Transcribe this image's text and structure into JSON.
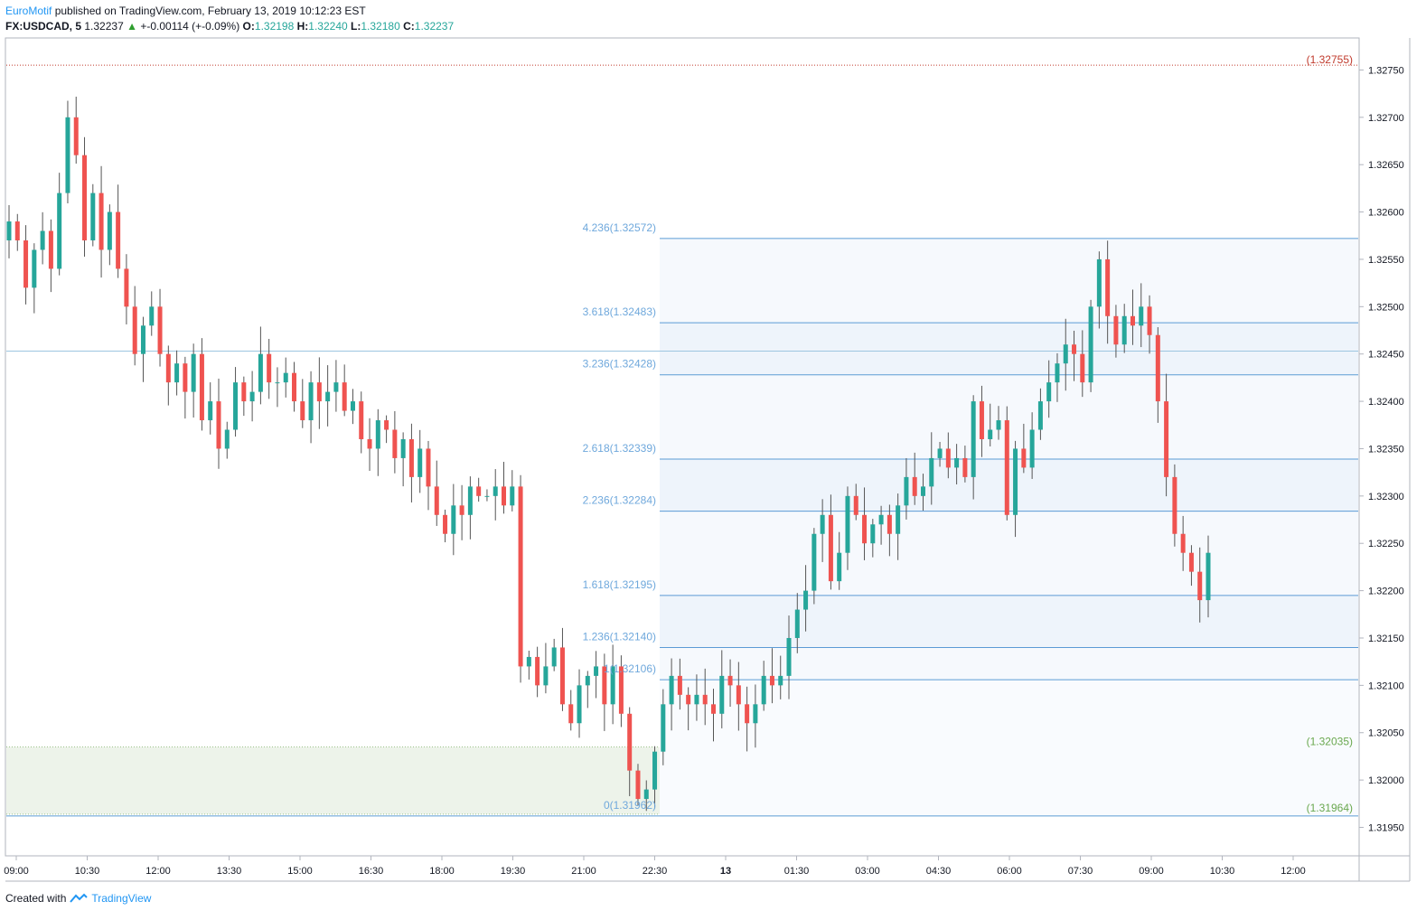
{
  "header": {
    "author": "EuroMotif",
    "published_text": "published on TradingView.com, February 13, 2019 10:12:23 EST",
    "symbol": "FX:USDCAD",
    "interval": "5",
    "last": "1.32237",
    "change": "+-0.00114 (+-0.09%)",
    "o_label": "O:",
    "o_value": "1.32198",
    "h_label": "H:",
    "h_value": "1.32240",
    "l_label": "L:",
    "l_value": "1.32180",
    "c_label": "C:",
    "c_value": "1.32237"
  },
  "footer": {
    "created_with": "Created with",
    "brand": "TradingView"
  },
  "colors": {
    "up": "#26a69a",
    "down": "#ef5350",
    "fib": "#5b9bd5",
    "fib_text": "#6fa8dc",
    "zone_fill": "#edf3ea",
    "zone_text": "#6aa84f",
    "top_level": "#c0392b"
  },
  "chart_data": {
    "type": "candlestick",
    "ylim": [
      1.319,
      1.328
    ],
    "y_ticks": [
      "1.31950",
      "1.32000",
      "1.32050",
      "1.32100",
      "1.32150",
      "1.32200",
      "1.32250",
      "1.32300",
      "1.32350",
      "1.32400",
      "1.32450",
      "1.32500",
      "1.32550",
      "1.32600",
      "1.32650",
      "1.32700",
      "1.32750"
    ],
    "x_ticks": [
      "09:00",
      "10:30",
      "12:00",
      "13:30",
      "15:00",
      "16:30",
      "18:00",
      "19:30",
      "21:00",
      "22:30",
      "13",
      "01:30",
      "03:00",
      "04:30",
      "06:00",
      "07:30",
      "09:00",
      "10:30",
      "12:00"
    ],
    "fib_levels": [
      {
        "label": "4.236(1.32572)",
        "value": 1.32572
      },
      {
        "label": "3.618(1.32483)",
        "value": 1.32483
      },
      {
        "label": "3.236(1.32428)",
        "value": 1.32428
      },
      {
        "label": "2.618(1.32339)",
        "value": 1.32339
      },
      {
        "label": "2.236(1.32284)",
        "value": 1.32284
      },
      {
        "label": "1.618(1.32195)",
        "value": 1.32195
      },
      {
        "label": "1.236(1.32140)",
        "value": 1.3214
      },
      {
        "label": "1(1.32106)",
        "value": 1.32106
      },
      {
        "label": "0(1.31962)",
        "value": 1.31962
      }
    ],
    "horizontal_line": 1.32453,
    "top_level": {
      "label": "(1.32755)",
      "value": 1.32755
    },
    "zone": {
      "upper_label": "(1.32035)",
      "upper": 1.32035,
      "lower_label": "(1.31964)",
      "lower": 1.31964
    },
    "path": [
      1.3259,
      1.3257,
      1.3252,
      1.3256,
      1.3258,
      1.3254,
      1.3262,
      1.327,
      1.3266,
      1.3257,
      1.3262,
      1.3256,
      1.326,
      1.3254,
      1.325,
      1.3245,
      1.3248,
      1.325,
      1.3245,
      1.3242,
      1.3244,
      1.3241,
      1.3245,
      1.3238,
      1.324,
      1.3235,
      1.3237,
      1.3242,
      1.324,
      1.3241,
      1.3245,
      1.3242,
      1.3242,
      1.3243,
      1.324,
      1.3238,
      1.3242,
      1.324,
      1.3241,
      1.3242,
      1.3239,
      1.324,
      1.3236,
      1.3235,
      1.3238,
      1.3237,
      1.3234,
      1.3236,
      1.3232,
      1.3235,
      1.3231,
      1.3228,
      1.3226,
      1.3229,
      1.3228,
      1.3231,
      1.323,
      1.323,
      1.3231,
      1.3229,
      1.3231,
      1.3212,
      1.3213,
      1.321,
      1.3212,
      1.3214,
      1.3208,
      1.3206,
      1.321,
      1.3211,
      1.3212,
      1.3208,
      1.3212,
      1.3207,
      1.3201,
      1.3198,
      1.3199,
      1.3203,
      1.3208,
      1.3211,
      1.3209,
      1.3208,
      1.3209,
      1.3208,
      1.3207,
      1.3211,
      1.321,
      1.3208,
      1.3206,
      1.3208,
      1.3211,
      1.321,
      1.3211,
      1.3215,
      1.3218,
      1.322,
      1.3226,
      1.3228,
      1.3221,
      1.3224,
      1.323,
      1.3228,
      1.3225,
      1.3227,
      1.3228,
      1.3226,
      1.3229,
      1.3232,
      1.323,
      1.3231,
      1.3234,
      1.3235,
      1.3233,
      1.3234,
      1.3232,
      1.324,
      1.3236,
      1.3237,
      1.3238,
      1.3228,
      1.3235,
      1.3233,
      1.3237,
      1.324,
      1.3242,
      1.3244,
      1.3246,
      1.3245,
      1.3242,
      1.325,
      1.3255,
      1.3249,
      1.3246,
      1.3249,
      1.3248,
      1.325,
      1.3247,
      1.324,
      1.3232,
      1.3226,
      1.3224,
      1.3222,
      1.3219,
      1.3224
    ]
  }
}
